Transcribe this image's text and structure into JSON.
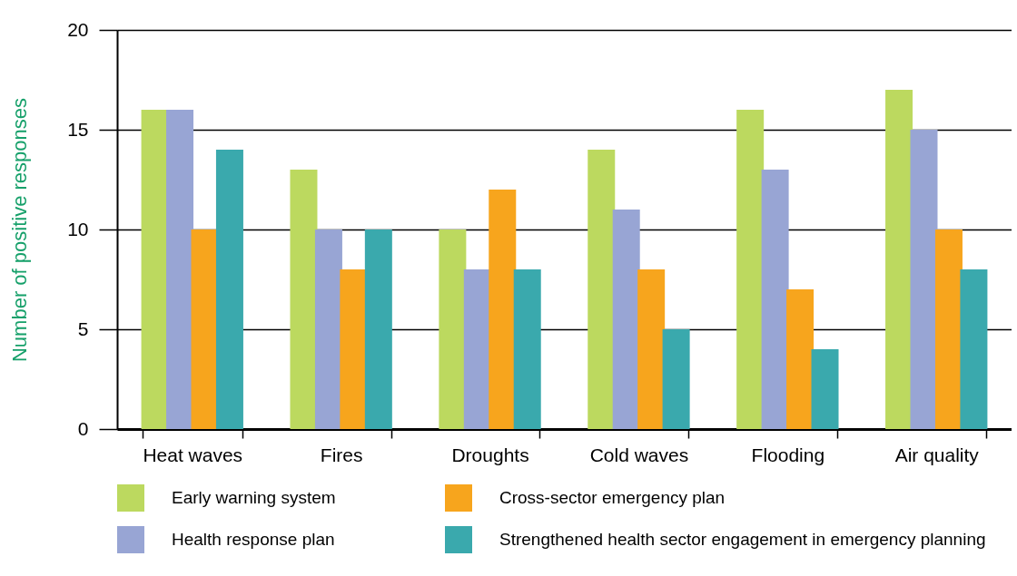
{
  "chart_data": {
    "type": "bar",
    "ylabel": "Number of positive responses",
    "categories": [
      "Heat waves",
      "Fires",
      "Droughts",
      "Cold waves",
      "Flooding",
      "Air quality"
    ],
    "series": [
      {
        "name": "Early warning system",
        "color": "#bcd95f",
        "values": [
          16,
          13,
          10,
          14,
          16,
          17
        ]
      },
      {
        "name": "Health response plan",
        "color": "#98a5d4",
        "values": [
          16,
          10,
          8,
          11,
          13,
          15
        ]
      },
      {
        "name": "Cross-sector emergency plan",
        "color": "#f7a51d",
        "values": [
          10,
          8,
          12,
          8,
          7,
          10
        ]
      },
      {
        "name": "Strengthened health sector engagement in emergency planning",
        "color": "#3aa9ad",
        "values": [
          14,
          10,
          8,
          5,
          4,
          8
        ]
      }
    ],
    "ylim": [
      0,
      20
    ],
    "yticks": [
      0,
      5,
      10,
      15,
      20
    ],
    "grid": "y",
    "legend": "bottom"
  }
}
